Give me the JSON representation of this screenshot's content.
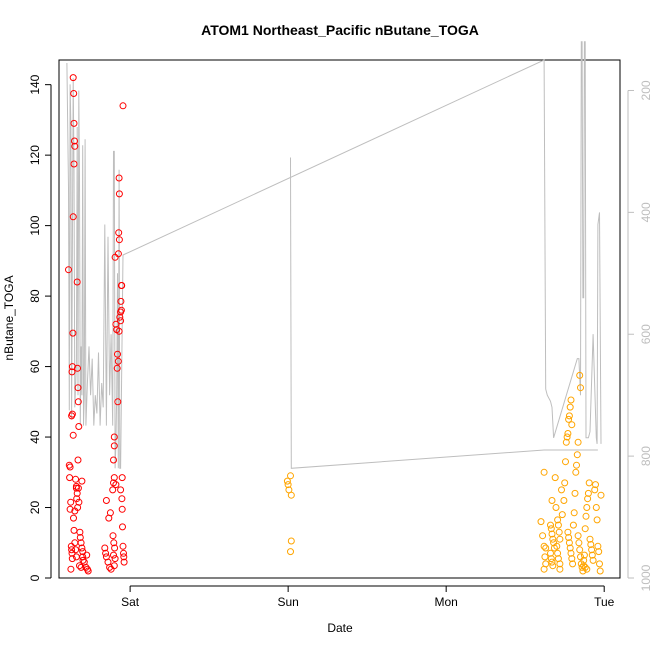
{
  "chart_data": {
    "type": "scatter",
    "title": "ATOM1 Northeast_Pacific nButane_TOGA",
    "xlabel": "Date",
    "ylabel": "nButane_TOGA",
    "x_ticks": [
      "Sat",
      "Sun",
      "Mon",
      "Tue"
    ],
    "x_range_days": [
      -0.45,
      3.1
    ],
    "ylim": [
      0,
      147
    ],
    "y_ticks": [
      0,
      20,
      40,
      60,
      80,
      100,
      120,
      140
    ],
    "y2_label": "",
    "y2_ticks": [
      200,
      400,
      600,
      800,
      1000
    ],
    "y2_range": [
      1000,
      150
    ],
    "grid": false,
    "colors": {
      "series1": "#ff0000",
      "series2": "#ffa500",
      "line": "#bebebe",
      "axis": "#000000",
      "axis2": "#bebebe"
    },
    "series": [
      {
        "color": "#ff0000",
        "points": [
          [
            -0.39,
            87.5
          ],
          [
            -0.385,
            32
          ],
          [
            -0.38,
            31.5
          ],
          [
            -0.383,
            28.5
          ],
          [
            -0.376,
            21.5
          ],
          [
            -0.38,
            19.5
          ],
          [
            -0.372,
            9
          ],
          [
            -0.37,
            8
          ],
          [
            -0.368,
            7
          ],
          [
            -0.366,
            5.5
          ],
          [
            -0.375,
            2.5
          ],
          [
            -0.37,
            46
          ],
          [
            -0.36,
            142
          ],
          [
            -0.357,
            137.5
          ],
          [
            -0.355,
            129
          ],
          [
            -0.352,
            124
          ],
          [
            -0.35,
            122.5
          ],
          [
            -0.355,
            117.5
          ],
          [
            -0.36,
            102.5
          ],
          [
            -0.362,
            69.5
          ],
          [
            -0.365,
            60
          ],
          [
            -0.368,
            58.5
          ],
          [
            -0.365,
            46.5
          ],
          [
            -0.36,
            40.5
          ],
          [
            -0.345,
            28
          ],
          [
            -0.34,
            26
          ],
          [
            -0.34,
            25.5
          ],
          [
            -0.335,
            24
          ],
          [
            -0.338,
            22.5
          ],
          [
            -0.332,
            20
          ],
          [
            -0.35,
            19
          ],
          [
            -0.358,
            17
          ],
          [
            -0.355,
            13.5
          ],
          [
            -0.35,
            10
          ],
          [
            -0.345,
            8
          ],
          [
            -0.34,
            6
          ],
          [
            -0.335,
            84
          ],
          [
            -0.333,
            59.5
          ],
          [
            -0.33,
            54
          ],
          [
            -0.328,
            50
          ],
          [
            -0.325,
            43
          ],
          [
            -0.33,
            33.5
          ],
          [
            -0.327,
            25.5
          ],
          [
            -0.324,
            21.5
          ],
          [
            -0.318,
            13
          ],
          [
            -0.315,
            11.5
          ],
          [
            -0.31,
            10
          ],
          [
            -0.305,
            8.5
          ],
          [
            -0.3,
            7.5
          ],
          [
            -0.3,
            6
          ],
          [
            -0.298,
            5
          ],
          [
            -0.32,
            3.5
          ],
          [
            -0.31,
            3
          ],
          [
            -0.305,
            27.5
          ],
          [
            -0.29,
            4.5
          ],
          [
            -0.28,
            3
          ],
          [
            -0.27,
            2.5
          ],
          [
            -0.265,
            2
          ],
          [
            -0.275,
            6.5
          ],
          [
            -0.16,
            8.5
          ],
          [
            -0.155,
            7
          ],
          [
            -0.15,
            6
          ],
          [
            -0.14,
            4.5
          ],
          [
            -0.13,
            3
          ],
          [
            -0.12,
            2.5
          ],
          [
            -0.135,
            17
          ],
          [
            -0.125,
            18.5
          ],
          [
            -0.15,
            22
          ],
          [
            -0.11,
            25
          ],
          [
            -0.105,
            27
          ],
          [
            -0.1,
            28.5
          ],
          [
            -0.09,
            26.5
          ],
          [
            -0.105,
            33.5
          ],
          [
            -0.1,
            37.5
          ],
          [
            -0.1,
            40
          ],
          [
            -0.108,
            12
          ],
          [
            -0.103,
            10
          ],
          [
            -0.098,
            8.5
          ],
          [
            -0.105,
            6.5
          ],
          [
            -0.095,
            5.5
          ],
          [
            -0.1,
            3.5
          ],
          [
            -0.095,
            91
          ],
          [
            -0.09,
            72
          ],
          [
            -0.085,
            70.5
          ],
          [
            -0.08,
            63.5
          ],
          [
            -0.075,
            61.5
          ],
          [
            -0.082,
            59.5
          ],
          [
            -0.078,
            50
          ],
          [
            -0.07,
            70
          ],
          [
            -0.065,
            74
          ],
          [
            -0.06,
            75.5
          ],
          [
            -0.07,
            113.5
          ],
          [
            -0.068,
            109
          ],
          [
            -0.072,
            98
          ],
          [
            -0.068,
            96
          ],
          [
            -0.074,
            92
          ],
          [
            -0.055,
            83
          ],
          [
            -0.053,
            83
          ],
          [
            -0.058,
            78.5
          ],
          [
            -0.055,
            76
          ],
          [
            -0.06,
            73
          ],
          [
            -0.05,
            28.5
          ],
          [
            -0.052,
            22.5
          ],
          [
            -0.048,
            14.5
          ],
          [
            -0.045,
            9
          ],
          [
            -0.042,
            7
          ],
          [
            -0.04,
            6
          ],
          [
            -0.038,
            4.5
          ],
          [
            -0.045,
            134
          ],
          [
            -0.05,
            19.5
          ],
          [
            -0.06,
            25
          ]
        ]
      },
      {
        "color": "#ffa500",
        "points": [
          [
            0.995,
            27.5
          ],
          [
            1.0,
            26.5
          ],
          [
            1.005,
            25
          ],
          [
            1.015,
            29
          ],
          [
            1.02,
            23.5
          ],
          [
            1.02,
            10.5
          ],
          [
            1.015,
            7.5
          ],
          [
            2.62,
            30
          ],
          [
            2.6,
            16
          ],
          [
            2.61,
            12
          ],
          [
            2.62,
            9
          ],
          [
            2.625,
            6
          ],
          [
            2.63,
            4
          ],
          [
            2.62,
            2.5
          ],
          [
            2.63,
            8.5
          ],
          [
            2.66,
            15
          ],
          [
            2.665,
            14
          ],
          [
            2.67,
            12.5
          ],
          [
            2.675,
            11
          ],
          [
            2.68,
            10
          ],
          [
            2.685,
            8.5
          ],
          [
            2.66,
            7
          ],
          [
            2.665,
            5.5
          ],
          [
            2.67,
            4.5
          ],
          [
            2.675,
            3.5
          ],
          [
            2.67,
            22
          ],
          [
            2.69,
            28.5
          ],
          [
            2.695,
            20
          ],
          [
            2.705,
            16.5
          ],
          [
            2.71,
            15
          ],
          [
            2.715,
            13
          ],
          [
            2.72,
            11
          ],
          [
            2.7,
            9
          ],
          [
            2.705,
            7
          ],
          [
            2.71,
            5.5
          ],
          [
            2.72,
            4
          ],
          [
            2.72,
            2.5
          ],
          [
            2.73,
            25
          ],
          [
            2.735,
            18
          ],
          [
            2.745,
            22
          ],
          [
            2.75,
            27
          ],
          [
            2.755,
            33
          ],
          [
            2.76,
            38.5
          ],
          [
            2.765,
            40
          ],
          [
            2.77,
            41
          ],
          [
            2.775,
            45
          ],
          [
            2.78,
            46
          ],
          [
            2.785,
            48.5
          ],
          [
            2.79,
            50.5
          ],
          [
            2.795,
            43.5
          ],
          [
            2.77,
            13
          ],
          [
            2.775,
            11.5
          ],
          [
            2.78,
            10
          ],
          [
            2.785,
            8.5
          ],
          [
            2.79,
            7
          ],
          [
            2.795,
            5.5
          ],
          [
            2.8,
            4
          ],
          [
            2.805,
            15
          ],
          [
            2.81,
            18.5
          ],
          [
            2.815,
            24
          ],
          [
            2.82,
            30
          ],
          [
            2.825,
            32
          ],
          [
            2.83,
            35
          ],
          [
            2.835,
            38.5
          ],
          [
            2.845,
            57.5
          ],
          [
            2.85,
            54
          ],
          [
            2.835,
            12
          ],
          [
            2.84,
            10
          ],
          [
            2.845,
            8
          ],
          [
            2.85,
            6
          ],
          [
            2.855,
            4
          ],
          [
            2.86,
            3
          ],
          [
            2.865,
            2
          ],
          [
            2.87,
            5
          ],
          [
            2.875,
            6.5
          ],
          [
            2.88,
            14
          ],
          [
            2.885,
            17.5
          ],
          [
            2.89,
            20
          ],
          [
            2.895,
            22.5
          ],
          [
            2.9,
            24
          ],
          [
            2.905,
            27
          ],
          [
            2.87,
            3.5
          ],
          [
            2.88,
            3
          ],
          [
            2.89,
            2.5
          ],
          [
            2.91,
            11
          ],
          [
            2.915,
            9.5
          ],
          [
            2.92,
            8
          ],
          [
            2.925,
            6.5
          ],
          [
            2.93,
            5
          ],
          [
            2.94,
            25
          ],
          [
            2.945,
            26.5
          ],
          [
            2.95,
            20
          ],
          [
            2.955,
            16.5
          ],
          [
            2.96,
            9
          ],
          [
            2.965,
            7.5
          ],
          [
            2.97,
            4
          ],
          [
            2.975,
            2
          ],
          [
            2.98,
            23.5
          ]
        ]
      }
    ],
    "line_series": {
      "color": "#bebebe",
      "y2_points": [
        [
          -0.4,
          155
        ],
        [
          -0.39,
          360
        ],
        [
          -0.385,
          725
        ],
        [
          -0.38,
          190
        ],
        [
          -0.375,
          260
        ],
        [
          -0.37,
          740
        ],
        [
          -0.36,
          180
        ],
        [
          -0.355,
          330
        ],
        [
          -0.35,
          720
        ],
        [
          -0.34,
          650
        ],
        [
          -0.335,
          260
        ],
        [
          -0.33,
          700
        ],
        [
          -0.325,
          200
        ],
        [
          -0.32,
          340
        ],
        [
          -0.315,
          750
        ],
        [
          -0.31,
          620
        ],
        [
          -0.305,
          700
        ],
        [
          -0.3,
          290
        ],
        [
          -0.295,
          750
        ],
        [
          -0.29,
          700
        ],
        [
          -0.285,
          280
        ],
        [
          -0.28,
          750
        ],
        [
          -0.27,
          680
        ],
        [
          -0.26,
          620
        ],
        [
          -0.25,
          700
        ],
        [
          -0.24,
          640
        ],
        [
          -0.23,
          750
        ],
        [
          -0.22,
          700
        ],
        [
          -0.21,
          730
        ],
        [
          -0.2,
          630
        ],
        [
          -0.19,
          750
        ],
        [
          -0.18,
          680
        ],
        [
          -0.17,
          720
        ],
        [
          -0.16,
          420
        ],
        [
          -0.15,
          750
        ],
        [
          -0.14,
          440
        ],
        [
          -0.13,
          700
        ],
        [
          -0.12,
          600
        ],
        [
          -0.11,
          750
        ],
        [
          -0.105,
          300
        ],
        [
          -0.1,
          300
        ],
        [
          -0.095,
          820
        ],
        [
          -0.09,
          780
        ],
        [
          -0.085,
          700
        ],
        [
          -0.08,
          500
        ],
        [
          -0.075,
          820
        ],
        [
          -0.07,
          330
        ],
        [
          -0.065,
          820
        ],
        [
          -0.06,
          820
        ],
        [
          -0.045,
          470
        ],
        [
          2.62,
          150
        ],
        [
          2.63,
          690
        ],
        [
          2.64,
          700
        ],
        [
          2.66,
          710
        ],
        [
          2.67,
          720
        ],
        [
          2.68,
          770
        ],
        [
          2.83,
          640
        ],
        [
          2.84,
          640
        ],
        [
          2.85,
          700
        ],
        [
          2.855,
          120
        ],
        [
          2.86,
          120
        ],
        [
          2.865,
          540
        ],
        [
          2.87,
          540
        ],
        [
          2.875,
          120
        ],
        [
          2.88,
          120
        ],
        [
          2.885,
          770
        ],
        [
          2.9,
          770
        ],
        [
          2.91,
          760
        ],
        [
          2.93,
          600
        ],
        [
          2.95,
          770
        ],
        [
          2.955,
          780
        ],
        [
          2.96,
          420
        ],
        [
          2.97,
          400
        ],
        [
          2.98,
          780
        ]
      ],
      "y2_points_2": [
        [
          1.015,
          310
        ],
        [
          1.02,
          820
        ],
        [
          2.62,
          790
        ],
        [
          2.96,
          790
        ]
      ]
    }
  }
}
